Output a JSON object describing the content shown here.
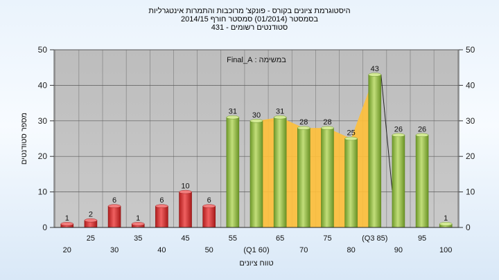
{
  "chart_data": {
    "type": "bar",
    "title_lines": [
      "היסטוגרמת ציונים בקורס - פונקצ' מרוכבות והתמרות אינטגרליות",
      "בסמסטר  (01/2014)  סמסטר חורף 2014/15",
      "סטודנטים רשומים - 431"
    ],
    "annotation": "במשימה : Final_A",
    "xlabel": "טווח ציונים",
    "ylabel": "מספר סטודנטים",
    "ylim": [
      0,
      50
    ],
    "yticks": [
      0,
      10,
      20,
      30,
      40,
      50
    ],
    "grid": true,
    "categories": [
      "20",
      "25",
      "30",
      "35",
      "40",
      "45",
      "50",
      "55",
      "(Q1 60)",
      "65",
      "70",
      "75",
      "80",
      "(Q3 85)",
      "90",
      "95",
      "100"
    ],
    "values": [
      1,
      2,
      6,
      1,
      6,
      10,
      6,
      31,
      30,
      31,
      28,
      28,
      25,
      43,
      26,
      26,
      1
    ],
    "bar_colors": [
      "#d93a3a",
      "#d93a3a",
      "#d93a3a",
      "#d93a3a",
      "#d93a3a",
      "#d93a3a",
      "#d93a3a",
      "#9bc14b",
      "#9bc14b",
      "#9bc14b",
      "#9bc14b",
      "#9bc14b",
      "#9bc14b",
      "#9bc14b",
      "#9bc14b",
      "#9bc14b",
      "#9bc14b"
    ],
    "iqr_band": {
      "from_category": "(Q1 60)",
      "to_category": "(Q3 85)",
      "color": "#ffc03a"
    }
  }
}
